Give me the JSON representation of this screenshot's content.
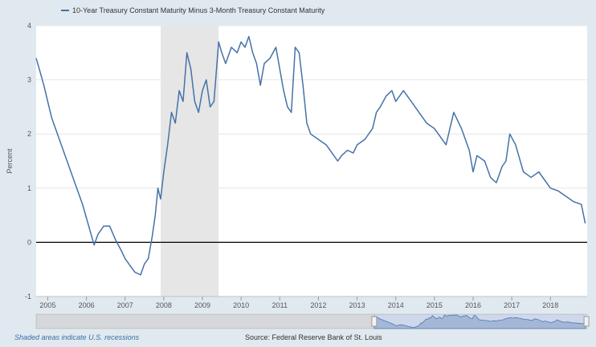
{
  "colors": {
    "background": "#e1e9f0",
    "plot_background": "#ffffff",
    "series": "#4572a7",
    "recession_shade": "#e6e6e6",
    "zero_line": "#000000",
    "grid": "#e6e6e6",
    "navigator_fill": "#b9c9de",
    "navigator_line": "#4572a7"
  },
  "footer": {
    "recession_note": "Shaded areas indicate U.S. recessions",
    "source": "Source: Federal Reserve Bank of St. Louis"
  },
  "chart_data": {
    "type": "line",
    "title": "",
    "ylabel": "Percent",
    "xlabel": "",
    "legend_position": "top-left",
    "grid": true,
    "xlim": [
      2004.7,
      2018.95
    ],
    "ylim": [
      -1,
      4
    ],
    "y_ticks": [
      "-1",
      "0",
      "1",
      "2",
      "3",
      "4"
    ],
    "x_ticks": [
      "2005",
      "2006",
      "2007",
      "2008",
      "2009",
      "2010",
      "2011",
      "2012",
      "2013",
      "2014",
      "2015",
      "2016",
      "2017",
      "2018"
    ],
    "x_tick_values": [
      2005,
      2006,
      2007,
      2008,
      2009,
      2010,
      2011,
      2012,
      2013,
      2014,
      2015,
      2016,
      2017,
      2018
    ],
    "recessions": [
      {
        "start": 2007.92,
        "end": 2009.42
      }
    ],
    "reference_line": 0,
    "series": [
      {
        "name": "10-Year Treasury Constant Maturity Minus 3-Month Treasury Constant Maturity",
        "x": [
          2004.7,
          2004.78,
          2004.9,
          2005.0,
          2005.1,
          2005.2,
          2005.35,
          2005.5,
          2005.7,
          2005.9,
          2006.0,
          2006.1,
          2006.2,
          2006.3,
          2006.45,
          2006.6,
          2006.75,
          2006.9,
          2007.0,
          2007.1,
          2007.25,
          2007.4,
          2007.5,
          2007.6,
          2007.7,
          2007.78,
          2007.85,
          2007.92,
          2008.0,
          2008.1,
          2008.2,
          2008.3,
          2008.4,
          2008.5,
          2008.6,
          2008.7,
          2008.8,
          2008.9,
          2009.0,
          2009.1,
          2009.2,
          2009.3,
          2009.42,
          2009.5,
          2009.6,
          2009.75,
          2009.9,
          2010.0,
          2010.1,
          2010.2,
          2010.3,
          2010.4,
          2010.5,
          2010.6,
          2010.75,
          2010.9,
          2011.0,
          2011.1,
          2011.2,
          2011.3,
          2011.4,
          2011.5,
          2011.6,
          2011.7,
          2011.8,
          2011.9,
          2012.0,
          2012.2,
          2012.4,
          2012.5,
          2012.6,
          2012.75,
          2012.9,
          2013.0,
          2013.2,
          2013.4,
          2013.5,
          2013.6,
          2013.75,
          2013.9,
          2014.0,
          2014.2,
          2014.4,
          2014.6,
          2014.8,
          2015.0,
          2015.1,
          2015.3,
          2015.5,
          2015.7,
          2015.9,
          2016.0,
          2016.1,
          2016.3,
          2016.45,
          2016.6,
          2016.75,
          2016.85,
          2016.95,
          2017.1,
          2017.3,
          2017.5,
          2017.7,
          2017.9,
          2018.0,
          2018.2,
          2018.4,
          2018.6,
          2018.8,
          2018.9
        ],
        "values": [
          3.4,
          3.2,
          2.9,
          2.6,
          2.3,
          2.1,
          1.8,
          1.5,
          1.1,
          0.7,
          0.45,
          0.2,
          -0.05,
          0.15,
          0.3,
          0.3,
          0.05,
          -0.15,
          -0.3,
          -0.4,
          -0.55,
          -0.6,
          -0.4,
          -0.3,
          0.1,
          0.5,
          1.0,
          0.8,
          1.3,
          1.8,
          2.4,
          2.2,
          2.8,
          2.6,
          3.5,
          3.2,
          2.6,
          2.4,
          2.8,
          3.0,
          2.5,
          2.6,
          3.7,
          3.5,
          3.3,
          3.6,
          3.5,
          3.7,
          3.6,
          3.8,
          3.5,
          3.3,
          2.9,
          3.3,
          3.4,
          3.6,
          3.2,
          2.8,
          2.5,
          2.4,
          3.6,
          3.5,
          2.9,
          2.2,
          2.0,
          1.95,
          1.9,
          1.8,
          1.6,
          1.5,
          1.6,
          1.7,
          1.65,
          1.8,
          1.9,
          2.1,
          2.4,
          2.5,
          2.7,
          2.8,
          2.6,
          2.8,
          2.6,
          2.4,
          2.2,
          2.1,
          2.0,
          1.8,
          2.4,
          2.1,
          1.7,
          1.3,
          1.6,
          1.5,
          1.2,
          1.1,
          1.4,
          1.5,
          2.0,
          1.8,
          1.3,
          1.2,
          1.3,
          1.1,
          1.0,
          0.95,
          0.85,
          0.75,
          0.7,
          0.35
        ]
      }
    ],
    "navigator": {
      "x_range": [
        1982,
        2019
      ],
      "selected_range": [
        2004.7,
        2018.95
      ]
    }
  }
}
